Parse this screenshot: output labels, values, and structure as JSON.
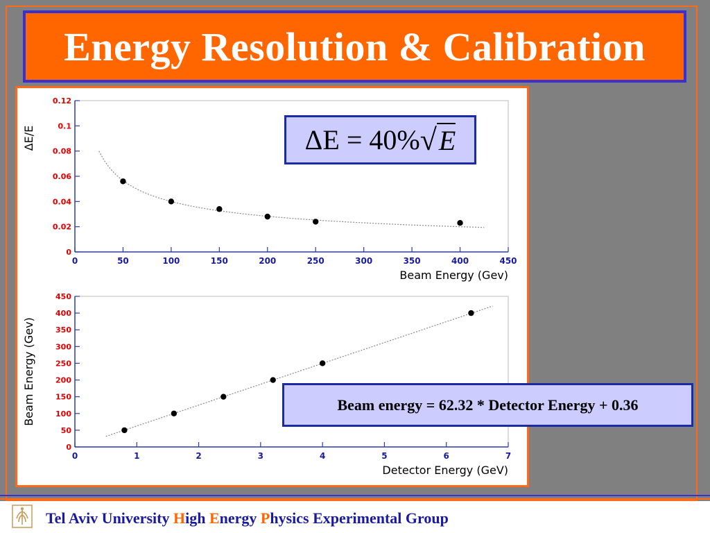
{
  "slide": {
    "title": "Energy Resolution & Calibration",
    "formula": {
      "delta_e": "ΔE",
      "equals": "=",
      "percent": "40%",
      "root_var": "E"
    },
    "calibration_label": "Beam energy = 62.32 * Detector Energy + 0.36",
    "footer": {
      "w1": "Tel Aviv University ",
      "h1": "H",
      "w2": "igh ",
      "h2": "E",
      "w3": "nergy ",
      "h3": "P",
      "w4": "hysics Experimental Group"
    }
  },
  "colors": {
    "title_bg": "#ff6600",
    "title_border": "#3a2fd0",
    "box_bg": "#ccccff",
    "y_ticks": "#e00000",
    "x_ticks": "#1a1aa0",
    "footer_text": "#1a1aa0",
    "footer_highlight": "#ff6600"
  },
  "chart_data": [
    {
      "type": "scatter",
      "xlabel": "Beam Energy (Gev)",
      "ylabel": "ΔE/E",
      "xlim": [
        0,
        450
      ],
      "ylim": [
        0,
        0.12
      ],
      "x_ticks": [
        "0",
        "50",
        "100",
        "150",
        "200",
        "250",
        "300",
        "350",
        "400",
        "450"
      ],
      "y_ticks": [
        "0",
        "0.02",
        "0.04",
        "0.06",
        "0.08",
        "0.1",
        "0.12"
      ],
      "points": [
        {
          "x": 50,
          "y": 0.056
        },
        {
          "x": 100,
          "y": 0.04
        },
        {
          "x": 150,
          "y": 0.034
        },
        {
          "x": 200,
          "y": 0.028
        },
        {
          "x": 250,
          "y": 0.024
        },
        {
          "x": 400,
          "y": 0.023
        }
      ],
      "fit": "ΔE/E = 0.40/√E"
    },
    {
      "type": "scatter",
      "xlabel": "Detector Energy (GeV)",
      "ylabel": "Beam Energy (Gev)",
      "xlim": [
        0,
        7
      ],
      "ylim": [
        0,
        450
      ],
      "x_ticks": [
        "0",
        "1",
        "2",
        "3",
        "4",
        "5",
        "6",
        "7"
      ],
      "y_ticks": [
        "0",
        "50",
        "100",
        "150",
        "200",
        "250",
        "300",
        "350",
        "400",
        "450"
      ],
      "points": [
        {
          "x": 0.8,
          "y": 50
        },
        {
          "x": 1.6,
          "y": 100
        },
        {
          "x": 2.4,
          "y": 150
        },
        {
          "x": 3.2,
          "y": 200
        },
        {
          "x": 4.0,
          "y": 250
        },
        {
          "x": 6.4,
          "y": 400
        }
      ],
      "fit": "y = 62.32x + 0.36"
    }
  ]
}
